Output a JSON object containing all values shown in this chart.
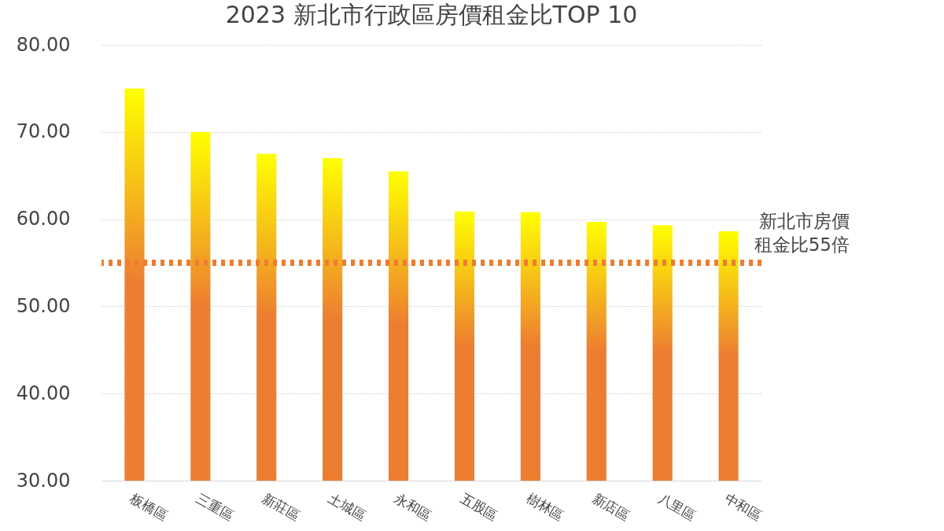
{
  "chart_data": {
    "type": "bar",
    "title": "2023 新北市行政區房價租金比TOP 10",
    "categories": [
      "板橋區",
      "三重區",
      "新莊區",
      "土城區",
      "永和區",
      "五股區",
      "樹林區",
      "新店區",
      "八里區",
      "中和區"
    ],
    "values": [
      75.0,
      70.0,
      67.5,
      67.0,
      65.5,
      60.9,
      60.8,
      59.7,
      59.3,
      58.6
    ],
    "color": "#ed7d31",
    "ylim": [
      30,
      80
    ],
    "yticks": [
      {
        "value": 30,
        "label": "30.00"
      },
      {
        "value": 40,
        "label": "40.00"
      },
      {
        "value": 50,
        "label": "50.00"
      },
      {
        "value": 60,
        "label": "60.00"
      },
      {
        "value": 70,
        "label": "70.00"
      },
      {
        "value": 80,
        "label": "80.00"
      }
    ],
    "grid": "y",
    "ref_lines": [
      {
        "axis": "y",
        "value": 55,
        "label": "新北市房價租金比55倍",
        "color": "#ed7d31",
        "line_style": "dotted"
      }
    ]
  }
}
